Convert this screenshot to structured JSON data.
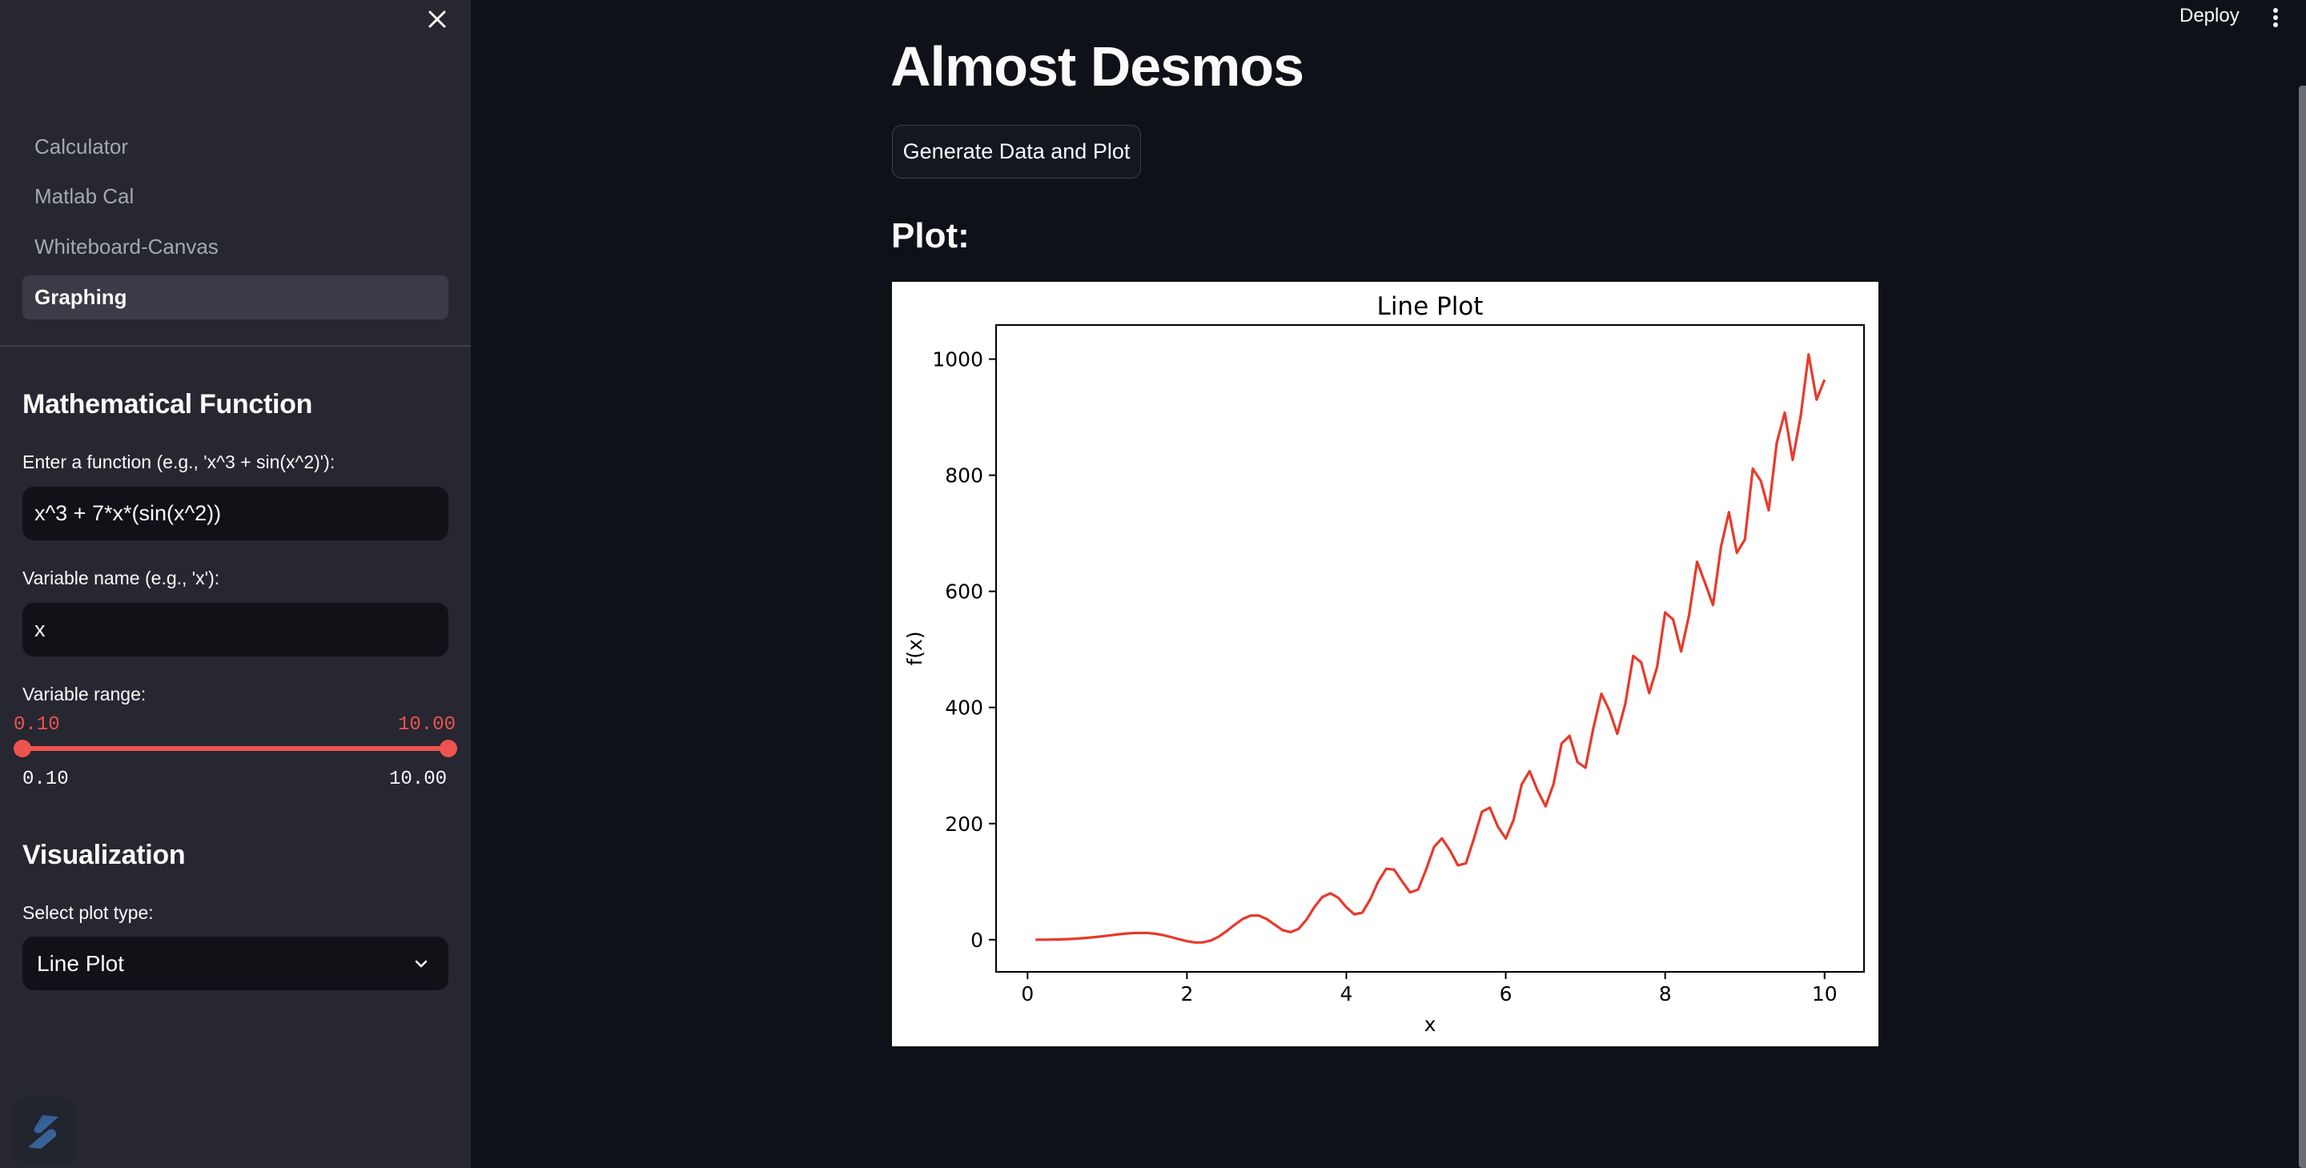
{
  "sidebar": {
    "close_icon": "close-icon",
    "nav": [
      {
        "label": "Calculator",
        "active": false
      },
      {
        "label": "Matlab Cal",
        "active": false
      },
      {
        "label": "Whiteboard-Canvas",
        "active": false
      },
      {
        "label": "Graphing",
        "active": true
      }
    ],
    "function_section": {
      "heading": "Mathematical Function",
      "function_label": "Enter a function (e.g., 'x^3 + sin(x^2)'):",
      "function_value": "x^3 + 7*x*(sin(x^2))",
      "variable_label": "Variable name (e.g., 'x'):",
      "variable_value": "x",
      "range_label": "Variable range:",
      "range_low": "0.10",
      "range_high": "10.00",
      "range_min": "0.10",
      "range_max": "10.00"
    },
    "visualization_section": {
      "heading": "Visualization",
      "plot_type_label": "Select plot type:",
      "plot_type_value": "Line Plot"
    },
    "logo_icon": "streamlit-logo-icon"
  },
  "header": {
    "deploy_label": "Deploy",
    "menu_icon": "kebab-menu-icon"
  },
  "main": {
    "title": "Almost Desmos",
    "generate_button": "Generate Data and Plot",
    "plot_heading": "Plot:"
  },
  "colors": {
    "sidebar_bg": "#262730",
    "main_bg": "#0e1117",
    "accent": "#ef5350",
    "line": "#e8392b"
  },
  "chart_data": {
    "type": "line",
    "title": "Line Plot",
    "xlabel": "x",
    "ylabel": "f(x)",
    "xlim": [
      -0.395,
      10.495
    ],
    "ylim": [
      -55.4,
      1058.7
    ],
    "xticks": [
      0,
      2,
      4,
      6,
      8,
      10
    ],
    "yticks": [
      0,
      200,
      400,
      600,
      800,
      1000
    ],
    "grid": false,
    "legend": false,
    "series": [
      {
        "name": "f(x) = x^3 + 7*x*sin(x^2)",
        "color": "#e8392b",
        "x": [
          0.1,
          0.2,
          0.3,
          0.4,
          0.5,
          0.6,
          0.7,
          0.8,
          0.9,
          1.0,
          1.1,
          1.2,
          1.3,
          1.4,
          1.5,
          1.6,
          1.7,
          1.8,
          1.9,
          2.0,
          2.1,
          2.2,
          2.3,
          2.4,
          2.5,
          2.6,
          2.7,
          2.8,
          2.9,
          3.0,
          3.1,
          3.2,
          3.3,
          3.4,
          3.5,
          3.6,
          3.7,
          3.8,
          3.9,
          4.0,
          4.1,
          4.2,
          4.3,
          4.4,
          4.5,
          4.6,
          4.7,
          4.8,
          4.9,
          5.0,
          5.1,
          5.2,
          5.3,
          5.4,
          5.5,
          5.6,
          5.7,
          5.8,
          5.9,
          6.0,
          6.1,
          6.2,
          6.3,
          6.4,
          6.5,
          6.6,
          6.7,
          6.8,
          6.9,
          7.0,
          7.1,
          7.2,
          7.3,
          7.4,
          7.5,
          7.6,
          7.7,
          7.8,
          7.9,
          8.0,
          8.1,
          8.2,
          8.3,
          8.4,
          8.5,
          8.6,
          8.7,
          8.8,
          8.9,
          9.0,
          9.1,
          9.2,
          9.3,
          9.4,
          9.5,
          9.6,
          9.7,
          9.8,
          9.9,
          10.0
        ],
        "y": [
          0.01,
          0.06,
          0.22,
          0.51,
          0.99,
          1.7,
          2.65,
          3.86,
          5.29,
          6.89,
          8.54,
          10.06,
          11.23,
          11.81,
          11.55,
          10.24,
          7.88,
          4.59,
          0.85,
          -2.6,
          -4.8,
          -4.62,
          -1.3,
          5.43,
          15.04,
          25.77,
          35.75,
          41.55,
          41.73,
          35.65,
          26.12,
          16.56,
          13.0,
          18.61,
          34.49,
          56.44,
          73.63,
          79.82,
          72.19,
          55.94,
          43.65,
          46.59,
          69.45,
          100.23,
          122.14,
          120.59,
          100.47,
          81.34,
          86.38,
          120.37,
          159.67,
          174.63,
          153.88,
          128.18,
          131.51,
          173.42,
          220.26,
          227.38,
          195.05,
          174.34,
          206.97,
          267.63,
          290.31,
          256.81,
          229.71,
          268.55,
          337.74,
          351.26,
          305.91,
          296.27,
          365.09,
          423.65,
          394.96,
          354.61,
          406.49,
          488.77,
          477.56,
          424.74,
          470.37,
          563.52,
          551.61,
          496.56,
          558.83,
          651.04,
          614.52,
          576.37,
          676.04,
          736.33,
          666.41,
          689.32,
          811.16,
          790.4,
          739.57,
          855.9,
          907.65,
          826.43,
          901.99,
          1008.11,
          930.02,
          964.55
        ]
      }
    ]
  }
}
